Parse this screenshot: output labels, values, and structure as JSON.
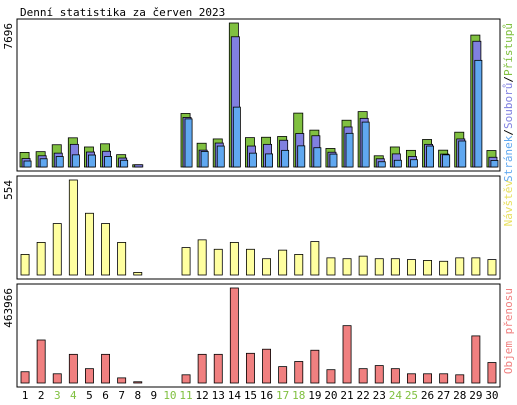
{
  "title": "Denní statistika za červen 2023",
  "colors": {
    "hits": "#80c040",
    "files": "#8080e0",
    "pages": "#60a8f0",
    "visits": "#ffff a0",
    "kbytes": "#f08080",
    "weekend_label": "#80c040"
  },
  "chart_data": [
    {
      "type": "bar",
      "id": "traffic",
      "max_label": "7696",
      "ymax": 7696,
      "series_label_parts": [
        "Stránek",
        "/",
        "Souborů",
        "/",
        "Přístupů"
      ],
      "series": [
        {
          "key": "hits",
          "name": "Přístupů",
          "values": [
            780,
            820,
            1190,
            1560,
            1070,
            1240,
            660,
            120,
            0,
            0,
            2860,
            1270,
            1500,
            7696,
            1570,
            1590,
            1630,
            2880,
            1970,
            990,
            2500,
            2960,
            600,
            1070,
            890,
            1470,
            900,
            1860,
            7050,
            880
          ]
        },
        {
          "key": "files",
          "name": "Souborů",
          "values": [
            450,
            600,
            740,
            1210,
            800,
            840,
            480,
            120,
            0,
            0,
            2650,
            900,
            1280,
            6960,
            1120,
            1210,
            1430,
            1790,
            1670,
            790,
            2140,
            2600,
            440,
            700,
            560,
            1210,
            690,
            1500,
            6720,
            520
          ]
        },
        {
          "key": "pages",
          "name": "Stránek",
          "values": [
            320,
            440,
            560,
            650,
            640,
            560,
            360,
            0,
            0,
            0,
            2570,
            830,
            1120,
            3200,
            740,
            700,
            890,
            1130,
            1030,
            690,
            1800,
            2400,
            280,
            360,
            390,
            1120,
            650,
            1390,
            5700,
            350
          ]
        }
      ]
    },
    {
      "type": "bar",
      "id": "visits",
      "max_label": "554",
      "ymax": 554,
      "series_label_parts": [
        "Návštěv"
      ],
      "series": [
        {
          "key": "visits",
          "name": "Návštěv",
          "values": [
            120,
            190,
            300,
            554,
            360,
            300,
            190,
            15,
            0,
            0,
            160,
            205,
            150,
            190,
            150,
            95,
            145,
            120,
            195,
            100,
            95,
            110,
            95,
            95,
            90,
            85,
            80,
            100,
            100,
            90
          ]
        }
      ]
    },
    {
      "type": "bar",
      "id": "kbytes",
      "max_label": "463966",
      "ymax": 463966,
      "series_label_parts": [
        "Objem přenosu"
      ],
      "series": [
        {
          "key": "kbytes",
          "name": "Objem přenosu",
          "values": [
            55000,
            210000,
            45000,
            140000,
            70000,
            140000,
            25000,
            6000,
            0,
            0,
            40000,
            140000,
            140000,
            463966,
            145000,
            165000,
            80000,
            105000,
            160000,
            65000,
            280000,
            70000,
            85000,
            70000,
            45000,
            45000,
            45000,
            40000,
            230000,
            100000
          ]
        }
      ]
    }
  ],
  "days": [
    "1",
    "2",
    "3",
    "4",
    "5",
    "6",
    "7",
    "8",
    "9",
    "10",
    "11",
    "12",
    "13",
    "14",
    "15",
    "16",
    "17",
    "18",
    "19",
    "20",
    "21",
    "22",
    "23",
    "24",
    "25",
    "26",
    "27",
    "28",
    "29",
    "30"
  ],
  "weekend_days": [
    "3",
    "4",
    "10",
    "11",
    "17",
    "18",
    "24",
    "25"
  ]
}
